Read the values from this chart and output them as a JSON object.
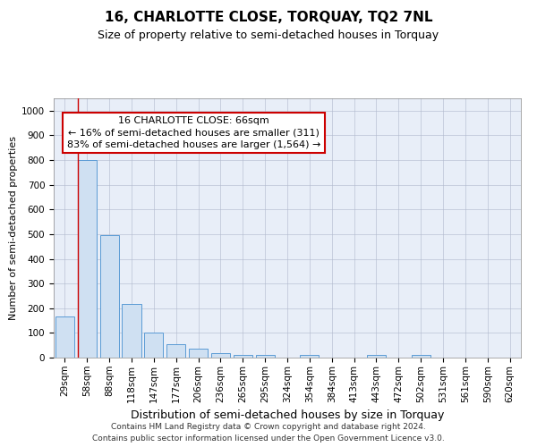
{
  "title": "16, CHARLOTTE CLOSE, TORQUAY, TQ2 7NL",
  "subtitle": "Size of property relative to semi-detached houses in Torquay",
  "xlabel": "Distribution of semi-detached houses by size in Torquay",
  "ylabel": "Number of semi-detached properties",
  "categories": [
    "29sqm",
    "58sqm",
    "88sqm",
    "118sqm",
    "147sqm",
    "177sqm",
    "206sqm",
    "236sqm",
    "265sqm",
    "295sqm",
    "324sqm",
    "354sqm",
    "384sqm",
    "413sqm",
    "443sqm",
    "472sqm",
    "502sqm",
    "531sqm",
    "561sqm",
    "590sqm",
    "620sqm"
  ],
  "values": [
    165,
    800,
    497,
    218,
    100,
    55,
    37,
    18,
    10,
    10,
    0,
    10,
    0,
    0,
    10,
    0,
    10,
    0,
    0,
    0,
    0
  ],
  "bar_color": "#cfe0f2",
  "bar_edge_color": "#5b9bd5",
  "property_line_color": "#cc0000",
  "property_line_xindex": 1,
  "annotation_line1": "16 CHARLOTTE CLOSE: 66sqm",
  "annotation_line2": "← 16% of semi-detached houses are smaller (311)",
  "annotation_line3": "83% of semi-detached houses are larger (1,564) →",
  "annotation_box_color": "#ffffff",
  "annotation_box_edge": "#cc0000",
  "ylim": [
    0,
    1050
  ],
  "yticks": [
    0,
    100,
    200,
    300,
    400,
    500,
    600,
    700,
    800,
    900,
    1000
  ],
  "grid_color": "#b0b8cc",
  "background_color": "#e8eef8",
  "footer_line1": "Contains HM Land Registry data © Crown copyright and database right 2024.",
  "footer_line2": "Contains public sector information licensed under the Open Government Licence v3.0.",
  "title_fontsize": 11,
  "subtitle_fontsize": 9,
  "xlabel_fontsize": 9,
  "ylabel_fontsize": 8,
  "tick_fontsize": 7.5,
  "annotation_fontsize": 8,
  "footer_fontsize": 6.5
}
